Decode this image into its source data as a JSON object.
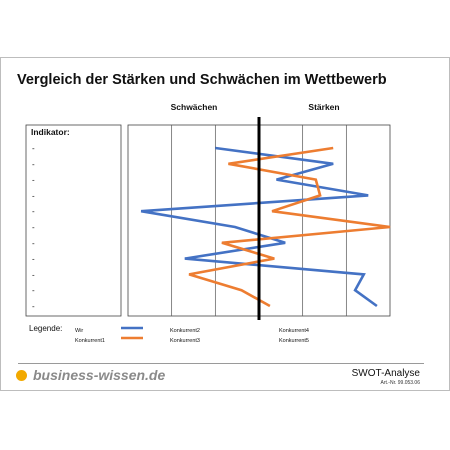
{
  "page": {
    "title": "Vergleich der Stärken und Schwächen im Wettbewerb",
    "footer_logo": "business-wissen.de",
    "footer_doc_title": "SWOT-Analyse",
    "footer_doc_number": "Art.-Nr. 99.053.06"
  },
  "chart_data": {
    "type": "line",
    "column_headers": [
      "Schwächen",
      "Stärken"
    ],
    "indicator_label": "Indikator:",
    "indicator_rows": [
      "-",
      "-",
      "-",
      "-",
      "-",
      "-",
      "-",
      "-",
      "-",
      "-",
      "-"
    ],
    "x_range": [
      -3,
      3
    ],
    "center_divider": 0,
    "legend_title": "Legende:",
    "legend": [
      {
        "name": "Wir",
        "color": "#4472c4"
      },
      {
        "name": "Konkurrent1",
        "color": "#ed7d31"
      },
      {
        "name": "Konkurrent2",
        "color": "#4472c4"
      },
      {
        "name": "Konkurrent3",
        "color": "#ed7d31"
      },
      {
        "name": "Konkurrent4",
        "color": ""
      },
      {
        "name": "Konkurrent5",
        "color": ""
      }
    ],
    "series": [
      {
        "name": "Wir",
        "color": "#4472c4",
        "points": [
          {
            "indicator": 1,
            "value": -1.0
          },
          {
            "indicator": 2,
            "value": 1.7
          },
          {
            "indicator": 3,
            "value": 0.4
          },
          {
            "indicator": 4,
            "value": 2.5
          },
          {
            "indicator": 5,
            "value": -2.7
          },
          {
            "indicator": 6,
            "value": -0.55
          },
          {
            "indicator": 7,
            "value": 0.6
          },
          {
            "indicator": 8,
            "value": -1.7
          },
          {
            "indicator": 9,
            "value": 2.4
          },
          {
            "indicator": 10,
            "value": 2.2
          },
          {
            "indicator": 11,
            "value": 2.7
          }
        ]
      },
      {
        "name": "Konkurrent1",
        "color": "#ed7d31",
        "points": [
          {
            "indicator": 1,
            "value": 1.7
          },
          {
            "indicator": 2,
            "value": -0.7
          },
          {
            "indicator": 3,
            "value": 1.3
          },
          {
            "indicator": 4,
            "value": 1.4
          },
          {
            "indicator": 5,
            "value": 0.3
          },
          {
            "indicator": 6,
            "value": 3.0
          },
          {
            "indicator": 7,
            "value": -0.85
          },
          {
            "indicator": 8,
            "value": 0.35
          },
          {
            "indicator": 9,
            "value": -1.6
          },
          {
            "indicator": 10,
            "value": -0.4
          },
          {
            "indicator": 11,
            "value": 0.25
          }
        ]
      }
    ],
    "grid": true
  }
}
